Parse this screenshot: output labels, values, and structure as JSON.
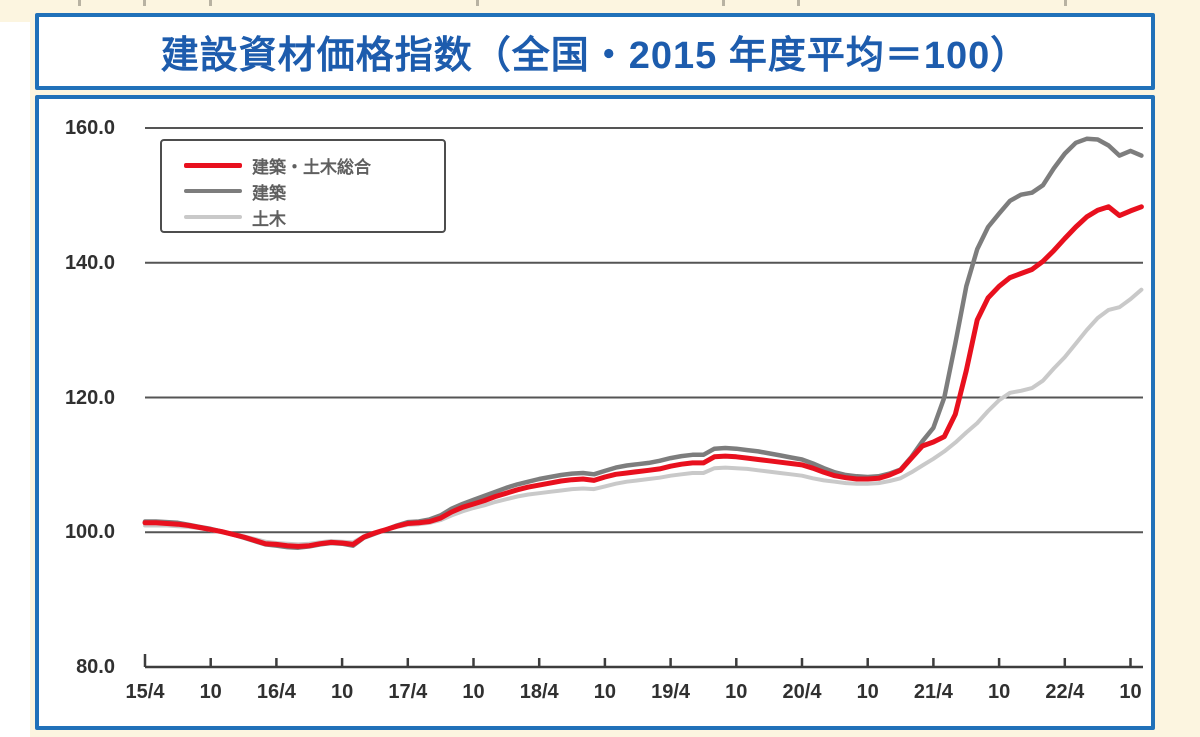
{
  "page": {
    "background_color": "#fcf5e0",
    "accent_blue": "#2171b9",
    "top_edge_marks": [
      78,
      143,
      209,
      476,
      722,
      797,
      1064
    ]
  },
  "title": {
    "text": "建設資材価格指数（全国・2015 年度平均＝100）",
    "color": "#1d5cad"
  },
  "chart_data": {
    "type": "line",
    "title": "建設資材価格指数（全国・2015 年度平均＝100）",
    "grid": true,
    "grid_color": "#555555",
    "axis_color": "#3d3d3d",
    "legend_position": "top-left",
    "y_axis": {
      "min": 80,
      "max": 160,
      "tick_values": [
        160,
        140,
        120,
        100,
        80
      ],
      "tick_labels": [
        "160.0",
        "140.0",
        "120.0",
        "100.0",
        "80.0"
      ]
    },
    "x_axis": {
      "start_month": "2015-04",
      "end_month": "2022-11",
      "months_per_tick": 6,
      "tick_labels": [
        "15/4",
        "10",
        "16/4",
        "10",
        "17/4",
        "10",
        "18/4",
        "10",
        "19/4",
        "10",
        "20/4",
        "10",
        "21/4",
        "10",
        "22/4",
        "10"
      ]
    },
    "series": [
      {
        "name": "建築・土木総合",
        "color": "#e8101e",
        "stroke_width": 5,
        "values": [
          101.4,
          101.4,
          101.3,
          101.2,
          101.0,
          100.7,
          100.4,
          100.1,
          99.7,
          99.3,
          98.8,
          98.3,
          98.2,
          98.0,
          97.9,
          98.0,
          98.3,
          98.5,
          98.4,
          98.2,
          99.3,
          99.9,
          100.4,
          100.9,
          101.3,
          101.4,
          101.6,
          102.1,
          103.0,
          103.7,
          104.2,
          104.7,
          105.3,
          105.8,
          106.3,
          106.7,
          107.0,
          107.3,
          107.6,
          107.8,
          107.9,
          107.7,
          108.2,
          108.6,
          108.8,
          109.0,
          109.2,
          109.4,
          109.8,
          110.1,
          110.3,
          110.3,
          111.2,
          111.3,
          111.2,
          111.0,
          110.8,
          110.6,
          110.4,
          110.2,
          110.0,
          109.5,
          108.9,
          108.4,
          108.1,
          107.9,
          107.9,
          108.0,
          108.5,
          109.2,
          111.0,
          112.8,
          113.4,
          114.2,
          117.5,
          124.0,
          131.5,
          134.8,
          136.5,
          137.8,
          138.4,
          139.0,
          140.2,
          141.8,
          143.6,
          145.3,
          146.8,
          147.8,
          148.3,
          147.0,
          147.7,
          148.3
        ]
      },
      {
        "name": "建築",
        "color": "#7d7d7d",
        "stroke_width": 4.5,
        "values": [
          101.6,
          101.6,
          101.5,
          101.4,
          101.1,
          100.8,
          100.5,
          100.1,
          99.7,
          99.2,
          98.7,
          98.2,
          98.0,
          97.8,
          97.7,
          97.9,
          98.2,
          98.4,
          98.3,
          98.0,
          99.2,
          99.8,
          100.4,
          101.0,
          101.5,
          101.6,
          101.9,
          102.5,
          103.5,
          104.2,
          104.8,
          105.4,
          106.0,
          106.6,
          107.1,
          107.5,
          107.9,
          108.2,
          108.5,
          108.7,
          108.8,
          108.6,
          109.1,
          109.6,
          109.9,
          110.1,
          110.3,
          110.6,
          111.0,
          111.3,
          111.5,
          111.5,
          112.4,
          112.5,
          112.4,
          112.2,
          112.0,
          111.7,
          111.4,
          111.1,
          110.8,
          110.2,
          109.5,
          108.9,
          108.5,
          108.3,
          108.2,
          108.3,
          108.7,
          109.3,
          111.2,
          113.5,
          115.5,
          120.0,
          128.0,
          136.5,
          142.0,
          145.3,
          147.3,
          149.2,
          150.1,
          150.4,
          151.5,
          154.0,
          156.2,
          157.8,
          158.4,
          158.3,
          157.4,
          155.9,
          156.6,
          155.9
        ]
      },
      {
        "name": "土木",
        "color": "#c9c9c9",
        "stroke_width": 4,
        "values": [
          101.0,
          101.0,
          101.0,
          100.9,
          100.8,
          100.6,
          100.3,
          100.0,
          99.7,
          99.4,
          99.0,
          98.6,
          98.4,
          98.3,
          98.2,
          98.3,
          98.5,
          98.7,
          98.6,
          98.5,
          99.4,
          99.9,
          100.4,
          100.8,
          101.1,
          101.2,
          101.4,
          101.8,
          102.5,
          103.1,
          103.6,
          104.0,
          104.5,
          104.9,
          105.3,
          105.6,
          105.8,
          106.0,
          106.2,
          106.4,
          106.5,
          106.4,
          106.8,
          107.2,
          107.5,
          107.7,
          107.9,
          108.1,
          108.4,
          108.6,
          108.8,
          108.8,
          109.5,
          109.6,
          109.5,
          109.4,
          109.2,
          109.0,
          108.8,
          108.6,
          108.4,
          108.0,
          107.7,
          107.5,
          107.3,
          107.2,
          107.2,
          107.3,
          107.6,
          108.0,
          108.9,
          109.9,
          110.9,
          112.0,
          113.3,
          114.8,
          116.2,
          118.0,
          119.6,
          120.7,
          121.0,
          121.4,
          122.5,
          124.3,
          126.0,
          128.0,
          130.0,
          131.8,
          133.0,
          133.4,
          134.6,
          136.0
        ]
      }
    ]
  }
}
